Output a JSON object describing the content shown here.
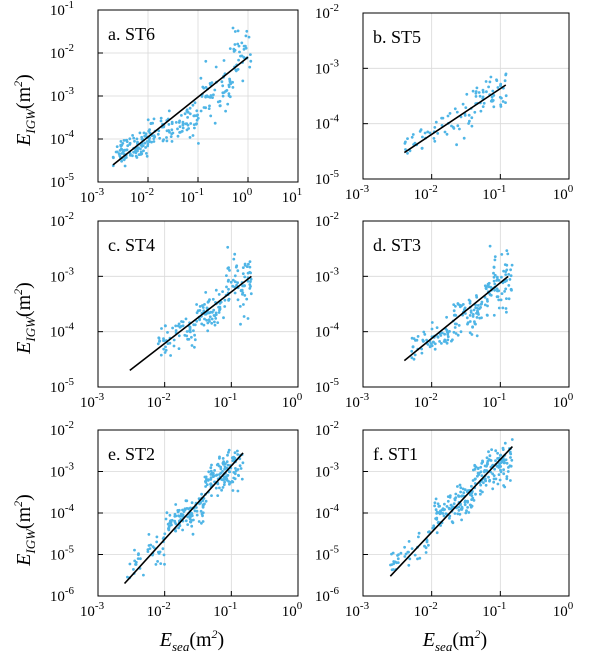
{
  "figure": {
    "ylabel_base": "E",
    "ylabel_sub": "IGW",
    "ylabel_unit": "(m",
    "ylabel_sup": "2",
    "ylabel_close": ")",
    "xlabel_base": "E",
    "xlabel_sub": "sea",
    "xlabel_unit": "(m",
    "xlabel_sup": "2",
    "xlabel_close": ")",
    "tick_base": "10",
    "scatter_color": "#4fb5e6",
    "fit_color": "#000000",
    "grid": true
  },
  "chart_data": [
    {
      "type": "scatter",
      "panel": "a. ST6",
      "xscale": "log",
      "yscale": "log",
      "xlim": [
        0.001,
        10
      ],
      "ylim": [
        1e-05,
        0.1
      ],
      "xticks": [
        "-3",
        "-2",
        "-1",
        "0",
        "1"
      ],
      "yticks": [
        "-5",
        "-4",
        "-3",
        "-2",
        "-1"
      ],
      "fit": {
        "x": [
          0.002,
          1.0
        ],
        "y": [
          2.5e-05,
          0.008
        ]
      },
      "clusters": [
        {
          "x": [
            0.002,
            0.01
          ],
          "center_y": 7e-05,
          "spread": 0.15,
          "n": 90
        },
        {
          "x": [
            0.01,
            0.1
          ],
          "center_y": 0.00012,
          "spread": 0.18,
          "n": 90
        },
        {
          "x": [
            0.1,
            0.5
          ],
          "center_y": 0.0008,
          "spread": 0.3,
          "n": 60
        },
        {
          "x": [
            0.5,
            1.2
          ],
          "center_y": 0.015,
          "spread": 0.25,
          "n": 35
        }
      ]
    },
    {
      "type": "scatter",
      "panel": "b. ST5",
      "xscale": "log",
      "yscale": "log",
      "xlim": [
        0.001,
        1
      ],
      "ylim": [
        1e-05,
        0.01
      ],
      "xticks": [
        "-3",
        "-2",
        "-1",
        "0"
      ],
      "yticks": [
        "-5",
        "-4",
        "-3",
        "-2"
      ],
      "fit": {
        "x": [
          0.004,
          0.12
        ],
        "y": [
          3e-05,
          0.0005
        ]
      },
      "clusters": [
        {
          "x": [
            0.004,
            0.01
          ],
          "center_y": 5e-05,
          "spread": 0.15,
          "n": 20
        },
        {
          "x": [
            0.01,
            0.04
          ],
          "center_y": 0.0001,
          "spread": 0.15,
          "n": 35
        },
        {
          "x": [
            0.04,
            0.13
          ],
          "center_y": 0.0003,
          "spread": 0.2,
          "n": 50
        }
      ]
    },
    {
      "type": "scatter",
      "panel": "c. ST4",
      "xscale": "log",
      "yscale": "log",
      "xlim": [
        0.001,
        1
      ],
      "ylim": [
        1e-05,
        0.01
      ],
      "xticks": [
        "-3",
        "-2",
        "-1",
        "0"
      ],
      "yticks": [
        "-5",
        "-4",
        "-3",
        "-2"
      ],
      "fit": {
        "x": [
          0.003,
          0.2
        ],
        "y": [
          2e-05,
          0.001
        ]
      },
      "clusters": [
        {
          "x": [
            0.008,
            0.03
          ],
          "center_y": 7e-05,
          "spread": 0.12,
          "n": 60
        },
        {
          "x": [
            0.03,
            0.08
          ],
          "center_y": 0.0002,
          "spread": 0.18,
          "n": 70
        },
        {
          "x": [
            0.08,
            0.2
          ],
          "center_y": 0.0007,
          "spread": 0.25,
          "n": 70
        }
      ]
    },
    {
      "type": "scatter",
      "panel": "d. ST3",
      "xscale": "log",
      "yscale": "log",
      "xlim": [
        0.001,
        1
      ],
      "ylim": [
        1e-05,
        0.01
      ],
      "xticks": [
        "-3",
        "-2",
        "-1",
        "0"
      ],
      "yticks": [
        "-5",
        "-4",
        "-3",
        "-2"
      ],
      "fit": {
        "x": [
          0.004,
          0.13
        ],
        "y": [
          3e-05,
          0.001
        ]
      },
      "clusters": [
        {
          "x": [
            0.005,
            0.02
          ],
          "center_y": 7e-05,
          "spread": 0.12,
          "n": 60
        },
        {
          "x": [
            0.02,
            0.06
          ],
          "center_y": 0.00015,
          "spread": 0.18,
          "n": 70
        },
        {
          "x": [
            0.06,
            0.15
          ],
          "center_y": 0.0006,
          "spread": 0.25,
          "n": 80
        }
      ]
    },
    {
      "type": "scatter",
      "panel": "e. ST2",
      "xscale": "log",
      "yscale": "log",
      "xlim": [
        0.001,
        1
      ],
      "ylim": [
        1e-06,
        0.01
      ],
      "xticks": [
        "-3",
        "-2",
        "-1",
        "0"
      ],
      "yticks": [
        "-6",
        "-5",
        "-4",
        "-3",
        "-2"
      ],
      "fit": {
        "x": [
          0.0025,
          0.15
        ],
        "y": [
          2e-06,
          0.0028
        ]
      },
      "clusters": [
        {
          "x": [
            0.0025,
            0.01
          ],
          "center_y": 1e-05,
          "spread": 0.2,
          "n": 40
        },
        {
          "x": [
            0.01,
            0.04
          ],
          "center_y": 0.0001,
          "spread": 0.2,
          "n": 110
        },
        {
          "x": [
            0.04,
            0.15
          ],
          "center_y": 0.0008,
          "spread": 0.22,
          "n": 130
        }
      ]
    },
    {
      "type": "scatter",
      "panel": "f. ST1",
      "xscale": "log",
      "yscale": "log",
      "xlim": [
        0.001,
        1
      ],
      "ylim": [
        1e-06,
        0.01
      ],
      "xticks": [
        "-3",
        "-2",
        "-1",
        "0"
      ],
      "yticks": [
        "-6",
        "-5",
        "-4",
        "-3",
        "-2"
      ],
      "fit": {
        "x": [
          0.0025,
          0.15
        ],
        "y": [
          3e-06,
          0.004
        ]
      },
      "clusters": [
        {
          "x": [
            0.0025,
            0.01
          ],
          "center_y": 1.5e-05,
          "spread": 0.2,
          "n": 40
        },
        {
          "x": [
            0.01,
            0.04
          ],
          "center_y": 0.00015,
          "spread": 0.2,
          "n": 110
        },
        {
          "x": [
            0.04,
            0.15
          ],
          "center_y": 0.001,
          "spread": 0.22,
          "n": 130
        }
      ]
    }
  ]
}
